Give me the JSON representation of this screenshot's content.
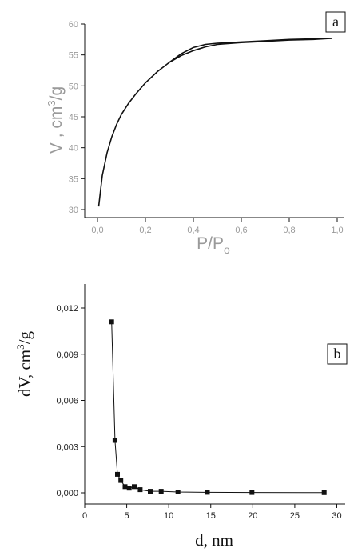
{
  "chart_data": [
    {
      "type": "line",
      "panel_label": "a",
      "xlabel_main": "P/P",
      "xlabel_sub": "o",
      "ylabel_main": "V , cm",
      "ylabel_sup": "3",
      "ylabel_tail": "/g",
      "xlim": [
        0,
        1
      ],
      "ylim": [
        30,
        60
      ],
      "x_ticks": [
        0,
        0.2,
        0.4,
        0.6,
        0.8,
        1.0
      ],
      "x_tick_labels": [
        "0,0",
        "0,2",
        "0,4",
        "0,6",
        "0,8",
        "1,0"
      ],
      "y_ticks": [
        30,
        35,
        40,
        45,
        50,
        55,
        60
      ],
      "y_tick_labels": [
        "30",
        "35",
        "40",
        "45",
        "50",
        "55",
        "60"
      ],
      "series": [
        {
          "x": [
            0.005,
            0.02,
            0.04,
            0.06,
            0.08,
            0.1,
            0.13,
            0.16,
            0.2,
            0.25,
            0.3,
            0.35,
            0.4,
            0.45,
            0.5,
            0.6,
            0.7,
            0.8,
            0.9,
            0.98
          ],
          "y": [
            30.5,
            35.5,
            39.2,
            41.8,
            43.8,
            45.4,
            47.2,
            48.7,
            50.5,
            52.3,
            53.8,
            54.9,
            55.7,
            56.3,
            56.7,
            57.0,
            57.2,
            57.4,
            57.5,
            57.7
          ]
        },
        {
          "x": [
            0.3,
            0.35,
            0.4,
            0.45,
            0.5,
            0.6,
            0.7,
            0.8,
            0.9,
            0.98
          ],
          "y": [
            53.8,
            55.2,
            56.2,
            56.7,
            56.9,
            57.1,
            57.3,
            57.5,
            57.6,
            57.7
          ]
        }
      ]
    },
    {
      "type": "line",
      "panel_label": "b",
      "xlabel": "d, nm",
      "ylabel_main": "dV, cm",
      "ylabel_sup": "3",
      "ylabel_tail": "/g",
      "xlim": [
        0,
        31
      ],
      "ylim": [
        -0.0008,
        0.012
      ],
      "x_ticks": [
        0,
        5,
        10,
        15,
        20,
        25,
        30
      ],
      "x_tick_labels": [
        "0",
        "5",
        "10",
        "15",
        "20",
        "25",
        "30"
      ],
      "y_ticks": [
        0,
        0.003,
        0.006,
        0.009,
        0.012
      ],
      "y_tick_labels": [
        "0,000",
        "0,003",
        "0,006",
        "0,009",
        "0,012"
      ],
      "series": [
        {
          "x": [
            3.2,
            3.6,
            3.9,
            4.3,
            4.8,
            5.3,
            5.9,
            6.6,
            7.8,
            9.1,
            11.1,
            14.6,
            19.9,
            28.5
          ],
          "y": [
            0.0111,
            0.0034,
            0.0012,
            0.0008,
            0.0004,
            0.0003,
            0.0004,
            0.0002,
            0.0001,
            0.0001,
            5e-05,
            3e-05,
            2e-05,
            1e-05
          ]
        }
      ]
    }
  ]
}
